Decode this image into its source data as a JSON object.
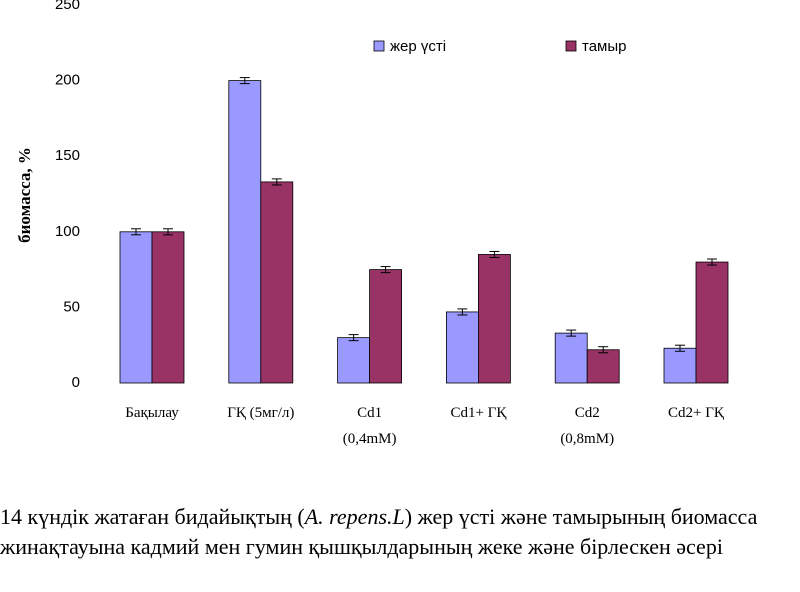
{
  "chart_data": {
    "type": "bar",
    "ylabel": "биомасса, %",
    "categories": [
      "Бақылау",
      "ГҚ (5мг/л)",
      "Cd1\n(0,4mM)",
      "Cd1+ ГҚ",
      "Cd2\n(0,8mM)",
      "Cd2+ ГҚ"
    ],
    "series": [
      {
        "name": "жер үсті",
        "color": "#9999ff",
        "values": [
          100,
          200,
          30,
          47,
          33,
          23
        ],
        "errors": [
          2,
          2,
          2,
          2,
          2,
          2
        ]
      },
      {
        "name": "тамыр",
        "color": "#993366",
        "values": [
          100,
          133,
          75,
          85,
          22,
          80
        ],
        "errors": [
          2,
          2,
          2,
          2,
          2,
          2
        ]
      }
    ],
    "ylim": [
      0,
      250
    ],
    "yticks": [
      0,
      50,
      100,
      150,
      200,
      250
    ],
    "grid": false,
    "legend": "top"
  },
  "caption": {
    "before": " 14 күндік жатаған бидайықтың (",
    "italic": "A. repens.L",
    "after": ") жер үсті және тамырының биомасса жинақтауына кадмий мен гумин қышқылдарының жеке және бірлескен әсері"
  }
}
